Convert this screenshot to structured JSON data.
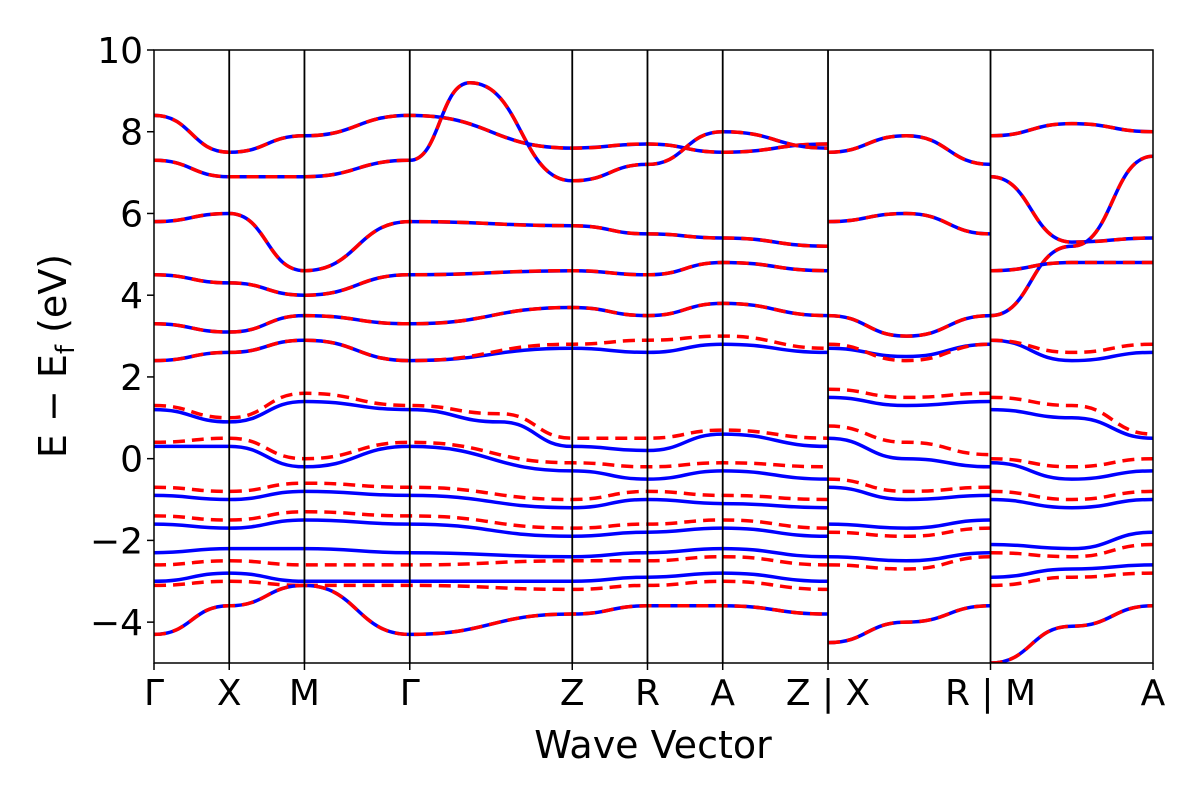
{
  "chart_data": {
    "type": "line",
    "xlabel": "Wave Vector",
    "ylabel": {
      "main": "E − E",
      "subscript": "f",
      "unit": " (eV)"
    },
    "ylim": [
      -5,
      10
    ],
    "yticks": [
      -4,
      -2,
      0,
      2,
      4,
      6,
      8,
      10
    ],
    "ytick_labels": [
      "−4",
      "−2",
      "0",
      "2",
      "4",
      "6",
      "8",
      "10"
    ],
    "grid": false,
    "legend": "none",
    "kpath_labels": [
      "Γ",
      "X",
      "M",
      "Γ",
      "Z",
      "R",
      "A",
      "Z | X",
      "R | M",
      "A"
    ],
    "kpath_positions": [
      0,
      0.5,
      1.0,
      1.7,
      2.78,
      3.28,
      3.78,
      4.48,
      5.56,
      6.64
    ],
    "segment_breaks": [
      4.48,
      5.56
    ],
    "colors": {
      "solid": "#0000ff",
      "dashed": "#ff0000",
      "frame": "#000000"
    },
    "series": [
      {
        "style": "solid",
        "color": "#0000ff",
        "x": [
          0,
          0.5,
          1.0,
          1.7,
          2.78,
          3.28,
          3.78,
          4.48
        ],
        "y": [
          8.4,
          7.5,
          7.9,
          8.4,
          7.6,
          7.7,
          7.5,
          7.7
        ]
      },
      {
        "style": "dashed",
        "color": "#ff0000",
        "x": [
          0,
          0.5,
          1.0,
          1.7,
          2.78,
          3.28,
          3.78,
          4.48
        ],
        "y": [
          8.4,
          7.5,
          7.9,
          8.4,
          7.6,
          7.7,
          7.5,
          7.7
        ]
      },
      {
        "style": "solid",
        "color": "#0000ff",
        "x": [
          0,
          0.5,
          1.0,
          1.7,
          2.1,
          2.78,
          3.28,
          3.78,
          4.48
        ],
        "y": [
          7.3,
          6.9,
          6.9,
          7.3,
          9.2,
          6.8,
          7.2,
          8.0,
          7.6
        ]
      },
      {
        "style": "dashed",
        "color": "#ff0000",
        "x": [
          0,
          0.5,
          1.0,
          1.7,
          2.1,
          2.78,
          3.28,
          3.78,
          4.48
        ],
        "y": [
          7.3,
          6.9,
          6.9,
          7.3,
          9.2,
          6.8,
          7.2,
          8.0,
          7.6
        ]
      },
      {
        "style": "solid",
        "color": "#0000ff",
        "x": [
          0,
          0.5,
          1.0,
          1.7,
          2.78,
          3.28,
          3.78,
          4.48
        ],
        "y": [
          5.8,
          6.0,
          4.6,
          5.8,
          5.7,
          5.5,
          5.4,
          5.2
        ]
      },
      {
        "style": "dashed",
        "color": "#ff0000",
        "x": [
          0,
          0.5,
          1.0,
          1.7,
          2.78,
          3.28,
          3.78,
          4.48
        ],
        "y": [
          5.8,
          6.0,
          4.6,
          5.8,
          5.7,
          5.5,
          5.4,
          5.2
        ]
      },
      {
        "style": "solid",
        "color": "#0000ff",
        "x": [
          0,
          0.5,
          1.0,
          1.7,
          2.78,
          3.28,
          3.78,
          4.48
        ],
        "y": [
          4.5,
          4.3,
          4.0,
          4.5,
          4.6,
          4.5,
          4.8,
          4.6
        ]
      },
      {
        "style": "dashed",
        "color": "#ff0000",
        "x": [
          0,
          0.5,
          1.0,
          1.7,
          2.78,
          3.28,
          3.78,
          4.48
        ],
        "y": [
          4.5,
          4.3,
          4.0,
          4.5,
          4.6,
          4.5,
          4.8,
          4.6
        ]
      },
      {
        "style": "solid",
        "color": "#0000ff",
        "x": [
          0,
          0.5,
          1.0,
          1.7,
          2.78,
          3.28,
          3.78,
          4.48
        ],
        "y": [
          3.3,
          3.1,
          3.5,
          3.3,
          3.7,
          3.5,
          3.8,
          3.5
        ]
      },
      {
        "style": "dashed",
        "color": "#ff0000",
        "x": [
          0,
          0.5,
          1.0,
          1.7,
          2.78,
          3.28,
          3.78,
          4.48
        ],
        "y": [
          3.3,
          3.1,
          3.5,
          3.3,
          3.7,
          3.5,
          3.8,
          3.5
        ]
      },
      {
        "style": "solid",
        "color": "#0000ff",
        "x": [
          0,
          0.5,
          1.0,
          1.7,
          2.78,
          3.28,
          3.78,
          4.48
        ],
        "y": [
          2.4,
          2.6,
          2.9,
          2.4,
          2.7,
          2.6,
          2.8,
          2.6
        ]
      },
      {
        "style": "dashed",
        "color": "#ff0000",
        "x": [
          0,
          0.5,
          1.0,
          1.7,
          2.78,
          3.28,
          3.78,
          4.48
        ],
        "y": [
          2.4,
          2.6,
          2.9,
          2.4,
          2.8,
          2.9,
          3.0,
          2.7
        ]
      },
      {
        "style": "solid",
        "color": "#0000ff",
        "x": [
          0,
          0.5,
          1.0,
          1.7,
          2.3,
          2.78,
          3.28,
          3.78,
          4.48
        ],
        "y": [
          1.2,
          0.9,
          1.4,
          1.2,
          0.9,
          0.3,
          0.2,
          0.6,
          0.3
        ]
      },
      {
        "style": "dashed",
        "color": "#ff0000",
        "x": [
          0,
          0.5,
          1.0,
          1.7,
          2.3,
          2.78,
          3.28,
          3.78,
          4.48
        ],
        "y": [
          1.3,
          1.0,
          1.6,
          1.3,
          1.1,
          0.5,
          0.5,
          0.7,
          0.5
        ]
      },
      {
        "style": "solid",
        "color": "#0000ff",
        "x": [
          0,
          0.5,
          1.0,
          1.7,
          2.78,
          3.28,
          3.78,
          4.48
        ],
        "y": [
          0.3,
          0.3,
          -0.2,
          0.3,
          -0.3,
          -0.5,
          -0.3,
          -0.5
        ]
      },
      {
        "style": "dashed",
        "color": "#ff0000",
        "x": [
          0,
          0.5,
          1.0,
          1.7,
          2.78,
          3.28,
          3.78,
          4.48
        ],
        "y": [
          0.4,
          0.5,
          0.0,
          0.4,
          -0.1,
          -0.2,
          -0.1,
          -0.2
        ]
      },
      {
        "style": "solid",
        "color": "#0000ff",
        "x": [
          0,
          0.5,
          1.0,
          1.7,
          2.78,
          3.28,
          3.78,
          4.48
        ],
        "y": [
          -0.9,
          -1.0,
          -0.8,
          -0.9,
          -1.2,
          -1.0,
          -1.1,
          -1.2
        ]
      },
      {
        "style": "dashed",
        "color": "#ff0000",
        "x": [
          0,
          0.5,
          1.0,
          1.7,
          2.78,
          3.28,
          3.78,
          4.48
        ],
        "y": [
          -0.7,
          -0.8,
          -0.6,
          -0.7,
          -1.0,
          -0.8,
          -0.9,
          -1.0
        ]
      },
      {
        "style": "solid",
        "color": "#0000ff",
        "x": [
          0,
          0.5,
          1.0,
          1.7,
          2.78,
          3.28,
          3.78,
          4.48
        ],
        "y": [
          -1.6,
          -1.7,
          -1.5,
          -1.6,
          -1.9,
          -1.8,
          -1.7,
          -1.9
        ]
      },
      {
        "style": "dashed",
        "color": "#ff0000",
        "x": [
          0,
          0.5,
          1.0,
          1.7,
          2.78,
          3.28,
          3.78,
          4.48
        ],
        "y": [
          -1.4,
          -1.5,
          -1.3,
          -1.4,
          -1.7,
          -1.6,
          -1.5,
          -1.7
        ]
      },
      {
        "style": "solid",
        "color": "#0000ff",
        "x": [
          0,
          0.5,
          1.0,
          1.7,
          2.78,
          3.28,
          3.78,
          4.48
        ],
        "y": [
          -2.3,
          -2.2,
          -2.2,
          -2.3,
          -2.4,
          -2.3,
          -2.2,
          -2.4
        ]
      },
      {
        "style": "dashed",
        "color": "#ff0000",
        "x": [
          0,
          0.5,
          1.0,
          1.7,
          2.78,
          3.28,
          3.78,
          4.48
        ],
        "y": [
          -2.6,
          -2.5,
          -2.6,
          -2.6,
          -2.5,
          -2.5,
          -2.4,
          -2.6
        ]
      },
      {
        "style": "solid",
        "color": "#0000ff",
        "x": [
          0,
          0.5,
          1.0,
          1.7,
          2.78,
          3.28,
          3.78,
          4.48
        ],
        "y": [
          -3.0,
          -2.8,
          -3.0,
          -3.0,
          -3.0,
          -2.9,
          -2.8,
          -3.0
        ]
      },
      {
        "style": "dashed",
        "color": "#ff0000",
        "x": [
          0,
          0.5,
          1.0,
          1.7,
          2.78,
          3.28,
          3.78,
          4.48
        ],
        "y": [
          -3.1,
          -3.0,
          -3.1,
          -3.1,
          -3.2,
          -3.1,
          -3.0,
          -3.2
        ]
      },
      {
        "style": "solid",
        "color": "#0000ff",
        "x": [
          0,
          0.5,
          1.0,
          1.7,
          2.78,
          3.28,
          3.78,
          4.48
        ],
        "y": [
          -4.3,
          -3.6,
          -3.1,
          -4.3,
          -3.8,
          -3.6,
          -3.6,
          -3.8
        ]
      },
      {
        "style": "dashed",
        "color": "#ff0000",
        "x": [
          0,
          0.5,
          1.0,
          1.7,
          2.78,
          3.28,
          3.78,
          4.48
        ],
        "y": [
          -4.3,
          -3.6,
          -3.1,
          -4.3,
          -3.8,
          -3.6,
          -3.6,
          -3.8
        ]
      },
      {
        "style": "solid",
        "color": "#0000ff",
        "x": [
          4.48,
          5.0,
          5.56
        ],
        "y": [
          7.5,
          7.9,
          7.2
        ]
      },
      {
        "style": "dashed",
        "color": "#ff0000",
        "x": [
          4.48,
          5.0,
          5.56
        ],
        "y": [
          7.5,
          7.9,
          7.2
        ]
      },
      {
        "style": "solid",
        "color": "#0000ff",
        "x": [
          4.48,
          5.0,
          5.56
        ],
        "y": [
          5.8,
          6.0,
          5.5
        ]
      },
      {
        "style": "dashed",
        "color": "#ff0000",
        "x": [
          4.48,
          5.0,
          5.56
        ],
        "y": [
          5.8,
          6.0,
          5.5
        ]
      },
      {
        "style": "solid",
        "color": "#0000ff",
        "x": [
          4.48,
          5.0,
          5.56
        ],
        "y": [
          3.5,
          3.0,
          3.5
        ]
      },
      {
        "style": "dashed",
        "color": "#ff0000",
        "x": [
          4.48,
          5.0,
          5.56
        ],
        "y": [
          3.5,
          3.0,
          3.5
        ]
      },
      {
        "style": "solid",
        "color": "#0000ff",
        "x": [
          4.48,
          5.0,
          5.56
        ],
        "y": [
          2.7,
          2.5,
          2.8
        ]
      },
      {
        "style": "dashed",
        "color": "#ff0000",
        "x": [
          4.48,
          5.0,
          5.56
        ],
        "y": [
          2.8,
          2.4,
          2.8
        ]
      },
      {
        "style": "solid",
        "color": "#0000ff",
        "x": [
          4.48,
          5.0,
          5.56
        ],
        "y": [
          1.5,
          1.3,
          1.4
        ]
      },
      {
        "style": "dashed",
        "color": "#ff0000",
        "x": [
          4.48,
          5.0,
          5.56
        ],
        "y": [
          1.7,
          1.5,
          1.6
        ]
      },
      {
        "style": "solid",
        "color": "#0000ff",
        "x": [
          4.48,
          5.0,
          5.56
        ],
        "y": [
          0.5,
          0.0,
          -0.2
        ]
      },
      {
        "style": "dashed",
        "color": "#ff0000",
        "x": [
          4.48,
          5.0,
          5.56
        ],
        "y": [
          0.8,
          0.4,
          0.1
        ]
      },
      {
        "style": "solid",
        "color": "#0000ff",
        "x": [
          4.48,
          5.0,
          5.56
        ],
        "y": [
          -0.7,
          -1.0,
          -0.9
        ]
      },
      {
        "style": "dashed",
        "color": "#ff0000",
        "x": [
          4.48,
          5.0,
          5.56
        ],
        "y": [
          -0.5,
          -0.8,
          -0.7
        ]
      },
      {
        "style": "solid",
        "color": "#0000ff",
        "x": [
          4.48,
          5.0,
          5.56
        ],
        "y": [
          -1.6,
          -1.7,
          -1.5
        ]
      },
      {
        "style": "dashed",
        "color": "#ff0000",
        "x": [
          4.48,
          5.0,
          5.56
        ],
        "y": [
          -1.8,
          -1.9,
          -1.7
        ]
      },
      {
        "style": "solid",
        "color": "#0000ff",
        "x": [
          4.48,
          5.0,
          5.56
        ],
        "y": [
          -2.4,
          -2.5,
          -2.3
        ]
      },
      {
        "style": "dashed",
        "color": "#ff0000",
        "x": [
          4.48,
          5.0,
          5.56
        ],
        "y": [
          -2.6,
          -2.7,
          -2.4
        ]
      },
      {
        "style": "solid",
        "color": "#0000ff",
        "x": [
          4.48,
          5.0,
          5.56
        ],
        "y": [
          -4.5,
          -4.0,
          -3.6
        ]
      },
      {
        "style": "dashed",
        "color": "#ff0000",
        "x": [
          4.48,
          5.0,
          5.56
        ],
        "y": [
          -4.5,
          -4.0,
          -3.6
        ]
      },
      {
        "style": "solid",
        "color": "#0000ff",
        "x": [
          5.56,
          6.1,
          6.64
        ],
        "y": [
          7.9,
          8.2,
          8.0
        ]
      },
      {
        "style": "dashed",
        "color": "#ff0000",
        "x": [
          5.56,
          6.1,
          6.64
        ],
        "y": [
          7.9,
          8.2,
          8.0
        ]
      },
      {
        "style": "solid",
        "color": "#0000ff",
        "x": [
          5.56,
          6.1,
          6.64
        ],
        "y": [
          6.9,
          5.3,
          5.4
        ]
      },
      {
        "style": "dashed",
        "color": "#ff0000",
        "x": [
          5.56,
          6.1,
          6.64
        ],
        "y": [
          6.9,
          5.3,
          5.4
        ]
      },
      {
        "style": "solid",
        "color": "#0000ff",
        "x": [
          5.56,
          6.1,
          6.64
        ],
        "y": [
          3.5,
          5.2,
          7.4
        ]
      },
      {
        "style": "dashed",
        "color": "#ff0000",
        "x": [
          5.56,
          6.1,
          6.64
        ],
        "y": [
          3.5,
          5.2,
          7.4
        ]
      },
      {
        "style": "solid",
        "color": "#0000ff",
        "x": [
          5.56,
          6.1,
          6.64
        ],
        "y": [
          4.6,
          4.8,
          4.8
        ]
      },
      {
        "style": "dashed",
        "color": "#ff0000",
        "x": [
          5.56,
          6.1,
          6.64
        ],
        "y": [
          4.6,
          4.8,
          4.8
        ]
      },
      {
        "style": "solid",
        "color": "#0000ff",
        "x": [
          5.56,
          6.1,
          6.64
        ],
        "y": [
          2.9,
          2.4,
          2.6
        ]
      },
      {
        "style": "dashed",
        "color": "#ff0000",
        "x": [
          5.56,
          6.1,
          6.64
        ],
        "y": [
          2.9,
          2.6,
          2.8
        ]
      },
      {
        "style": "solid",
        "color": "#0000ff",
        "x": [
          5.56,
          6.1,
          6.64
        ],
        "y": [
          1.2,
          1.0,
          0.5
        ]
      },
      {
        "style": "dashed",
        "color": "#ff0000",
        "x": [
          5.56,
          6.1,
          6.64
        ],
        "y": [
          1.5,
          1.3,
          0.6
        ]
      },
      {
        "style": "solid",
        "color": "#0000ff",
        "x": [
          5.56,
          6.1,
          6.64
        ],
        "y": [
          -0.1,
          -0.5,
          -0.3
        ]
      },
      {
        "style": "dashed",
        "color": "#ff0000",
        "x": [
          5.56,
          6.1,
          6.64
        ],
        "y": [
          0.0,
          -0.2,
          0.0
        ]
      },
      {
        "style": "solid",
        "color": "#0000ff",
        "x": [
          5.56,
          6.1,
          6.64
        ],
        "y": [
          -1.0,
          -1.2,
          -1.0
        ]
      },
      {
        "style": "dashed",
        "color": "#ff0000",
        "x": [
          5.56,
          6.1,
          6.64
        ],
        "y": [
          -0.8,
          -1.0,
          -0.8
        ]
      },
      {
        "style": "solid",
        "color": "#0000ff",
        "x": [
          5.56,
          6.1,
          6.64
        ],
        "y": [
          -2.1,
          -2.2,
          -1.8
        ]
      },
      {
        "style": "dashed",
        "color": "#ff0000",
        "x": [
          5.56,
          6.1,
          6.64
        ],
        "y": [
          -2.3,
          -2.4,
          -2.1
        ]
      },
      {
        "style": "solid",
        "color": "#0000ff",
        "x": [
          5.56,
          6.1,
          6.64
        ],
        "y": [
          -2.9,
          -2.7,
          -2.6
        ]
      },
      {
        "style": "dashed",
        "color": "#ff0000",
        "x": [
          5.56,
          6.1,
          6.64
        ],
        "y": [
          -3.1,
          -2.9,
          -2.8
        ]
      },
      {
        "style": "solid",
        "color": "#0000ff",
        "x": [
          5.56,
          6.1,
          6.64
        ],
        "y": [
          -5.0,
          -4.1,
          -3.6
        ]
      },
      {
        "style": "dashed",
        "color": "#ff0000",
        "x": [
          5.56,
          6.1,
          6.64
        ],
        "y": [
          -5.0,
          -4.1,
          -3.6
        ]
      }
    ]
  }
}
